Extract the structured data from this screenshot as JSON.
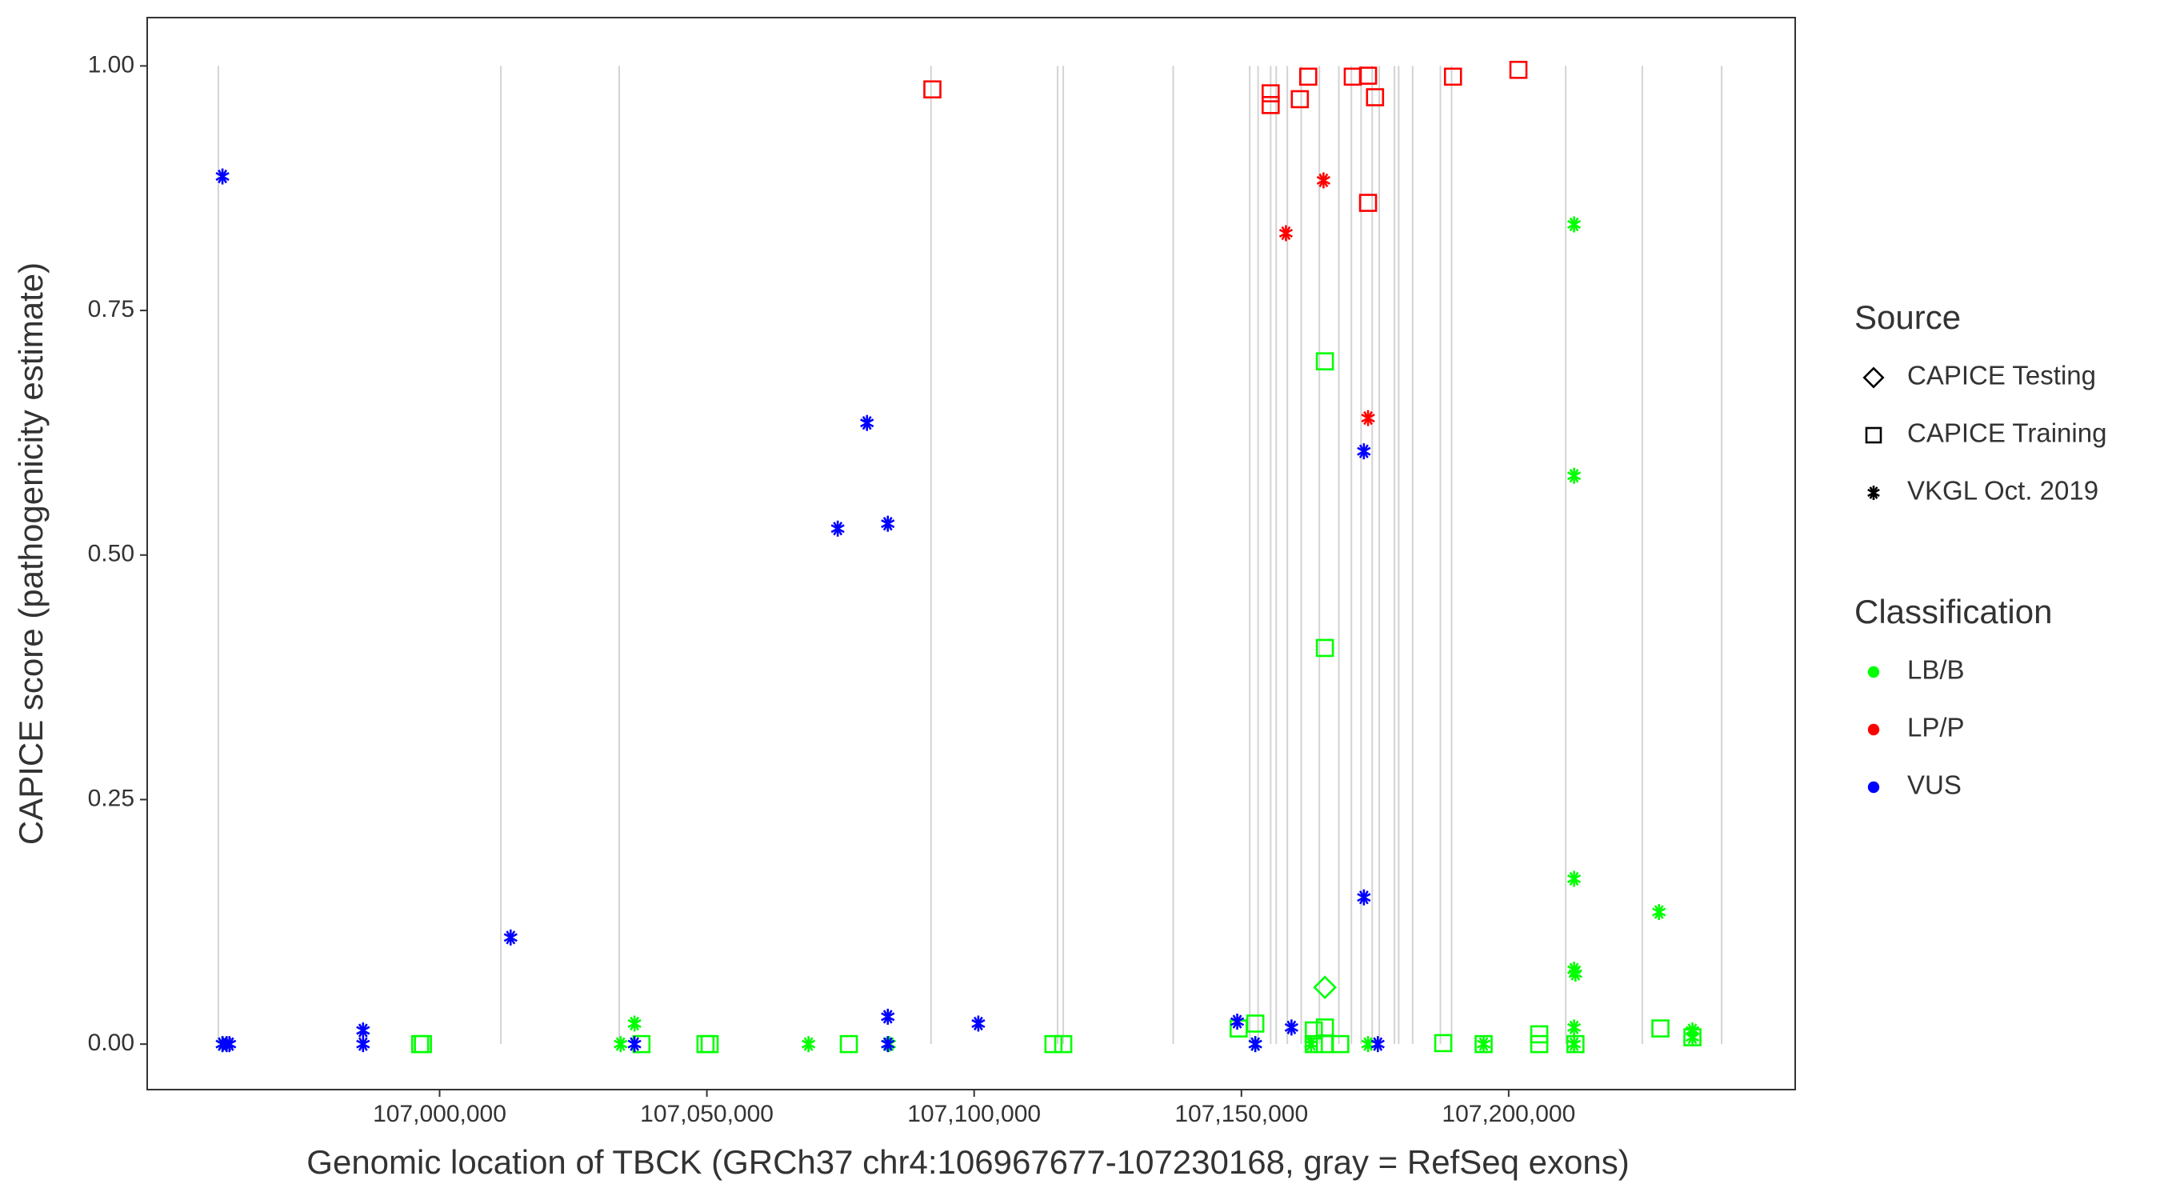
{
  "chart_data": {
    "type": "scatter",
    "xlabel": "Genomic location of TBCK (GRCh37 chr4:106967677-107230168, gray = RefSeq exons)",
    "ylabel": "CAPICE score (pathogenicity estimate)",
    "xlim": [
      106945300,
      107253600
    ],
    "ylim": [
      -0.0465,
      1.0494
    ],
    "xticks": [
      {
        "value": 107000000,
        "label": "107,000,000"
      },
      {
        "value": 107050000,
        "label": "107,050,000"
      },
      {
        "value": 107100000,
        "label": "107,100,000"
      },
      {
        "value": 107150000,
        "label": "107,150,000"
      },
      {
        "value": 107200000,
        "label": "107,200,000"
      }
    ],
    "yticks": [
      {
        "value": 0,
        "label": "0.00"
      },
      {
        "value": 0.25,
        "label": "0.25"
      },
      {
        "value": 0.5,
        "label": "0.50"
      },
      {
        "value": 0.75,
        "label": "0.75"
      },
      {
        "value": 1,
        "label": "1.00"
      }
    ],
    "exons": [
      106958600,
      107011460,
      107033600,
      107091930,
      107115620,
      107116670,
      107137240,
      107151560,
      107153120,
      107155470,
      107156510,
      107158590,
      107161190,
      107164580,
      107168230,
      107170570,
      107172390,
      107174470,
      107175780,
      107178640,
      107179420,
      107182030,
      107187230,
      107189320,
      107210670,
      107224990,
      107239840
    ],
    "exon_color": "#d3d3d3",
    "legends": [
      {
        "title": "Source",
        "entries": [
          {
            "name": "CAPICE Testing",
            "shape": "diamond"
          },
          {
            "name": "CAPICE Training",
            "shape": "square"
          },
          {
            "name": "VKGL Oct. 2019",
            "shape": "asterisk"
          }
        ]
      },
      {
        "title": "Classification",
        "entries": [
          {
            "name": "LB/B",
            "color": "#00ff00"
          },
          {
            "name": "LP/P",
            "color": "#ff0000"
          },
          {
            "name": "VUS",
            "color": "#0000ff"
          }
        ]
      }
    ],
    "series": [
      {
        "shape": "square",
        "color": "#00ff00",
        "x": [
          106996360,
          106996880,
          107037760,
          107049740,
          107050520,
          107076560,
          107114840,
          107116670,
          107149480,
          107152600,
          107165620,
          107165620,
          107163540,
          107165620,
          107163540,
          107165620,
          107168490,
          107187760,
          107195310,
          107205720,
          107205720,
          107212490,
          107228380,
          107234370
        ],
        "y": [
          0,
          0,
          0,
          0,
          0,
          0,
          0,
          0,
          0.016,
          0.021,
          0.698,
          0.405,
          0.014,
          0.017,
          0,
          0,
          0,
          0.001,
          0,
          0.01,
          0,
          0,
          0.016,
          0.007
        ]
      },
      {
        "shape": "diamond",
        "color": "#00ff00",
        "x": [
          107165620
        ],
        "y": [
          0.058
        ]
      },
      {
        "shape": "asterisk",
        "color": "#00ff00",
        "x": [
          107212230,
          107212230,
          107212230,
          107212230,
          107212490,
          107212230,
          107212230,
          107228120,
          107234370,
          107234370,
          106959380,
          107033860,
          107036460,
          107069010,
          107084110,
          107152600,
          107163020,
          107173690,
          107195310
        ],
        "y": [
          0.838,
          0.581,
          0.169,
          0.076,
          0.072,
          0.017,
          0,
          0.135,
          0.014,
          0.007,
          0,
          0,
          0.021,
          0,
          0,
          0,
          0,
          0,
          0
        ]
      },
      {
        "shape": "square",
        "color": "#ff0000",
        "x": [
          107092190,
          107155470,
          107155470,
          107160930,
          107162500,
          107170830,
          107173690,
          107175000,
          107173690,
          107189580,
          107201820
        ],
        "y": [
          0.976,
          0.972,
          0.96,
          0.966,
          0.989,
          0.989,
          0.99,
          0.968,
          0.86,
          0.989,
          0.996
        ]
      },
      {
        "shape": "asterisk",
        "color": "#ff0000",
        "x": [
          107158330,
          107165360,
          107173690
        ],
        "y": [
          0.829,
          0.883,
          0.64
        ]
      },
      {
        "shape": "asterisk",
        "color": "#0000ff",
        "x": [
          106959380,
          106959380,
          106960160,
          106960680,
          106985680,
          106985680,
          107013290,
          107036460,
          107074480,
          107079950,
          107083850,
          107083850,
          107083850,
          107100780,
          107149220,
          107152600,
          107159370,
          107172910,
          107172910,
          107175520
        ],
        "y": [
          0.887,
          0,
          0,
          0,
          0.014,
          0,
          0.109,
          0,
          0.527,
          0.635,
          0.532,
          0.028,
          0,
          0.021,
          0.023,
          0,
          0.017,
          0.606,
          0.15,
          0
        ]
      }
    ]
  }
}
